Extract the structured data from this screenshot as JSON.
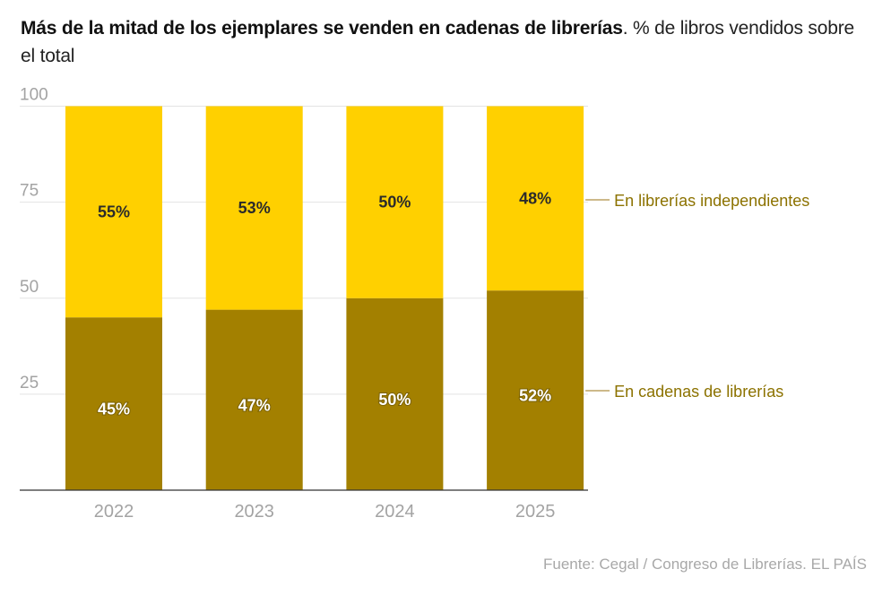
{
  "chart_data": {
    "type": "bar",
    "stacked": true,
    "title": "Más de la mitad de los ejemplares se venden en cadenas de librerías",
    "subtitle": ". % de libros vendidos sobre el total",
    "categories": [
      "2022",
      "2023",
      "2024",
      "2025"
    ],
    "series": [
      {
        "name": "En cadenas de librerías",
        "values": [
          45,
          47,
          50,
          52
        ],
        "color": "#a38000",
        "label_color": "#ffffff"
      },
      {
        "name": "En librerías independientes",
        "values": [
          55,
          53,
          50,
          48
        ],
        "color": "#ffd000",
        "label_color": "#2b2b2b"
      }
    ],
    "data_labels": [
      [
        "45%",
        "47%",
        "50%",
        "52%"
      ],
      [
        "55%",
        "53%",
        "50%",
        "48%"
      ]
    ],
    "yticks": [
      25,
      50,
      75,
      100
    ],
    "ylim": [
      0,
      100
    ],
    "xlabel": "",
    "ylabel": "",
    "grid": true,
    "legend_placement": "right",
    "legend_line_color": "#cdb98a",
    "legend_text_color": "#8c7200",
    "source": "Fuente: Cegal / Congreso de Librerías. EL PAÍS"
  }
}
